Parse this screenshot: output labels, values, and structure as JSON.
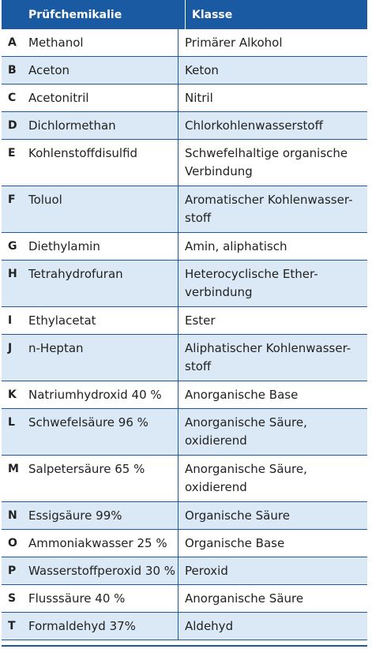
{
  "table": {
    "header": {
      "chemical": "Prüfchemikalie",
      "class": "Klasse"
    },
    "rows": [
      {
        "key": "A",
        "chemical": "Methanol",
        "class": "Primärer Alkohol",
        "lines": 1
      },
      {
        "key": "B",
        "chemical": "Aceton",
        "class": "Keton",
        "lines": 1
      },
      {
        "key": "C",
        "chemical": "Acetonitril",
        "class": "Nitril",
        "lines": 1
      },
      {
        "key": "D",
        "chemical": "Dichlormethan",
        "class": "Chlorkohlenwasserstoff",
        "lines": 1
      },
      {
        "key": "E",
        "chemical": "Kohlenstoffdisulfid",
        "class": "Schwefelhaltige organische Verbindung",
        "lines": 2
      },
      {
        "key": "F",
        "chemical": "Toluol",
        "class": "Aromatischer Kohlenwasser-stoff",
        "lines": 2
      },
      {
        "key": "G",
        "chemical": "Diethylamin",
        "class": "Amin, aliphatisch",
        "lines": 1
      },
      {
        "key": "H",
        "chemical": "Tetrahydrofuran",
        "class": "Heterocyclische Ether-verbindung",
        "lines": 2
      },
      {
        "key": "I",
        "chemical": "Ethylacetat",
        "class": "Ester",
        "lines": 1
      },
      {
        "key": "J",
        "chemical": "n-Heptan",
        "class": "Aliphatischer Kohlenwasser-stoff",
        "lines": 2
      },
      {
        "key": "K",
        "chemical": "Natriumhydroxid 40 %",
        "class": "Anorganische Base",
        "lines": 1
      },
      {
        "key": "L",
        "chemical": "Schwefelsäure 96 %",
        "class": "Anorganische Säure, oxidierend",
        "lines": 2
      },
      {
        "key": "M",
        "chemical": "Salpetersäure 65 %",
        "class": "Anorganische Säure, oxidierend",
        "lines": 2
      },
      {
        "key": "N",
        "chemical": "Essigsäure 99%",
        "class": "Organische Säure",
        "lines": 1
      },
      {
        "key": "O",
        "chemical": "Ammoniakwasser 25 %",
        "class": "Organische Base",
        "lines": 1
      },
      {
        "key": "P",
        "chemical": "Wasserstoffperoxid 30 %",
        "class": "Peroxid",
        "lines": 1
      },
      {
        "key": "S",
        "chemical": "Flusssäure 40 %",
        "class": "Anorganische Säure",
        "lines": 1
      },
      {
        "key": "T",
        "chemical": "Formaldehyd 37%",
        "class": "Aldehyd",
        "lines": 1
      }
    ]
  },
  "colors": {
    "header_bg": "#1a5aa3",
    "row_alt_bg": "#dbe8f5",
    "text": "#222222"
  }
}
